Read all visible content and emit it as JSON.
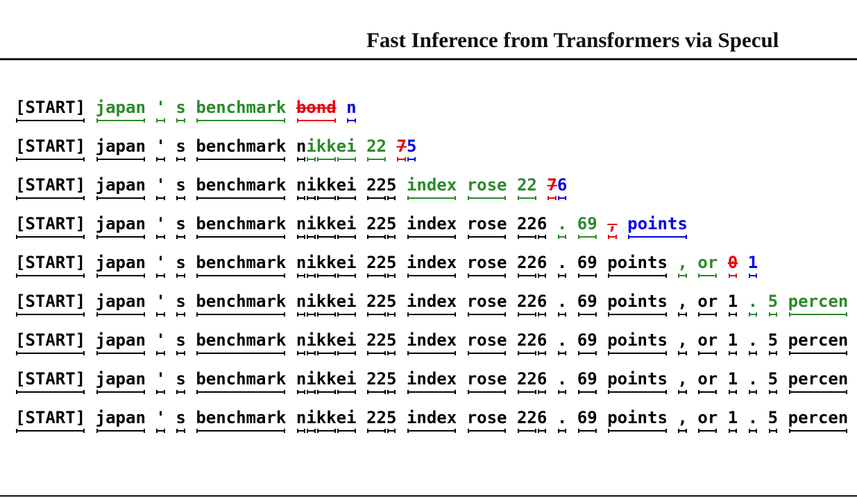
{
  "header": {
    "title": "Fast Inference from Transformers via Specul"
  },
  "rows": [
    [
      [
        {
          "t": "[START]",
          "c": "#000"
        }
      ],
      [
        {
          "t": "japan",
          "c": "#2a8a2a"
        }
      ],
      [
        {
          "t": "'",
          "c": "#2a8a2a"
        }
      ],
      [
        {
          "t": "s",
          "c": "#2a8a2a"
        }
      ],
      [
        {
          "t": "benchmark",
          "c": "#2a8a2a"
        }
      ],
      [
        {
          "t": "bond",
          "c": "#e8000b",
          "s": true
        }
      ],
      [
        {
          "t": "n",
          "c": "#0000e6"
        }
      ]
    ],
    [
      [
        {
          "t": "[START]",
          "c": "#000"
        }
      ],
      [
        {
          "t": "japan",
          "c": "#000"
        }
      ],
      [
        {
          "t": "'",
          "c": "#000"
        }
      ],
      [
        {
          "t": "s",
          "c": "#000"
        }
      ],
      [
        {
          "t": "benchmark",
          "c": "#000"
        }
      ],
      [
        {
          "t": "n",
          "c": "#000"
        },
        {
          "t": "i",
          "c": "#2a8a2a"
        },
        {
          "t": "kk",
          "c": "#2a8a2a"
        },
        {
          "t": "ei",
          "c": "#2a8a2a"
        }
      ],
      [
        {
          "t": "22",
          "c": "#2a8a2a"
        }
      ],
      [
        {
          "t": "7",
          "c": "#e8000b",
          "s": true
        },
        {
          "t": "5",
          "c": "#0000e6"
        }
      ]
    ],
    [
      [
        {
          "t": "[START]",
          "c": "#000"
        }
      ],
      [
        {
          "t": "japan",
          "c": "#000"
        }
      ],
      [
        {
          "t": "'",
          "c": "#000"
        }
      ],
      [
        {
          "t": "s",
          "c": "#000"
        }
      ],
      [
        {
          "t": "benchmark",
          "c": "#000"
        }
      ],
      [
        {
          "t": "n",
          "c": "#000"
        },
        {
          "t": "i",
          "c": "#000"
        },
        {
          "t": "kk",
          "c": "#000"
        },
        {
          "t": "ei",
          "c": "#000"
        }
      ],
      [
        {
          "t": "22",
          "c": "#000"
        },
        {
          "t": "5",
          "c": "#000"
        }
      ],
      [
        {
          "t": "index",
          "c": "#2a8a2a"
        }
      ],
      [
        {
          "t": "rose",
          "c": "#2a8a2a"
        }
      ],
      [
        {
          "t": "22",
          "c": "#2a8a2a"
        }
      ],
      [
        {
          "t": "7",
          "c": "#e8000b",
          "s": true
        },
        {
          "t": "6",
          "c": "#0000e6"
        }
      ]
    ],
    [
      [
        {
          "t": "[START]",
          "c": "#000"
        }
      ],
      [
        {
          "t": "japan",
          "c": "#000"
        }
      ],
      [
        {
          "t": "'",
          "c": "#000"
        }
      ],
      [
        {
          "t": "s",
          "c": "#000"
        }
      ],
      [
        {
          "t": "benchmark",
          "c": "#000"
        }
      ],
      [
        {
          "t": "n",
          "c": "#000"
        },
        {
          "t": "i",
          "c": "#000"
        },
        {
          "t": "kk",
          "c": "#000"
        },
        {
          "t": "ei",
          "c": "#000"
        }
      ],
      [
        {
          "t": "22",
          "c": "#000"
        },
        {
          "t": "5",
          "c": "#000"
        }
      ],
      [
        {
          "t": "index",
          "c": "#000"
        }
      ],
      [
        {
          "t": "rose",
          "c": "#000"
        }
      ],
      [
        {
          "t": "22",
          "c": "#000"
        },
        {
          "t": "6",
          "c": "#000"
        }
      ],
      [
        {
          "t": ".",
          "c": "#2a8a2a"
        }
      ],
      [
        {
          "t": "69",
          "c": "#2a8a2a"
        }
      ],
      [
        {
          "t": ",",
          "c": "#e8000b",
          "s": true
        }
      ],
      [
        {
          "t": "points",
          "c": "#0000e6"
        }
      ]
    ],
    [
      [
        {
          "t": "[START]",
          "c": "#000"
        }
      ],
      [
        {
          "t": "japan",
          "c": "#000"
        }
      ],
      [
        {
          "t": "'",
          "c": "#000"
        }
      ],
      [
        {
          "t": "s",
          "c": "#000"
        }
      ],
      [
        {
          "t": "benchmark",
          "c": "#000"
        }
      ],
      [
        {
          "t": "n",
          "c": "#000"
        },
        {
          "t": "i",
          "c": "#000"
        },
        {
          "t": "kk",
          "c": "#000"
        },
        {
          "t": "ei",
          "c": "#000"
        }
      ],
      [
        {
          "t": "22",
          "c": "#000"
        },
        {
          "t": "5",
          "c": "#000"
        }
      ],
      [
        {
          "t": "index",
          "c": "#000"
        }
      ],
      [
        {
          "t": "rose",
          "c": "#000"
        }
      ],
      [
        {
          "t": "22",
          "c": "#000"
        },
        {
          "t": "6",
          "c": "#000"
        }
      ],
      [
        {
          "t": ".",
          "c": "#000"
        }
      ],
      [
        {
          "t": "69",
          "c": "#000"
        }
      ],
      [
        {
          "t": "points",
          "c": "#000"
        }
      ],
      [
        {
          "t": ",",
          "c": "#2a8a2a"
        }
      ],
      [
        {
          "t": "or",
          "c": "#2a8a2a"
        }
      ],
      [
        {
          "t": "0",
          "c": "#e8000b",
          "s": true
        }
      ],
      [
        {
          "t": "1",
          "c": "#0000e6"
        }
      ]
    ],
    [
      [
        {
          "t": "[START]",
          "c": "#000"
        }
      ],
      [
        {
          "t": "japan",
          "c": "#000"
        }
      ],
      [
        {
          "t": "'",
          "c": "#000"
        }
      ],
      [
        {
          "t": "s",
          "c": "#000"
        }
      ],
      [
        {
          "t": "benchmark",
          "c": "#000"
        }
      ],
      [
        {
          "t": "n",
          "c": "#000"
        },
        {
          "t": "i",
          "c": "#000"
        },
        {
          "t": "kk",
          "c": "#000"
        },
        {
          "t": "ei",
          "c": "#000"
        }
      ],
      [
        {
          "t": "22",
          "c": "#000"
        },
        {
          "t": "5",
          "c": "#000"
        }
      ],
      [
        {
          "t": "index",
          "c": "#000"
        }
      ],
      [
        {
          "t": "rose",
          "c": "#000"
        }
      ],
      [
        {
          "t": "22",
          "c": "#000"
        },
        {
          "t": "6",
          "c": "#000"
        }
      ],
      [
        {
          "t": ".",
          "c": "#000"
        }
      ],
      [
        {
          "t": "69",
          "c": "#000"
        }
      ],
      [
        {
          "t": "points",
          "c": "#000"
        }
      ],
      [
        {
          "t": ",",
          "c": "#000"
        }
      ],
      [
        {
          "t": "or",
          "c": "#000"
        }
      ],
      [
        {
          "t": "1",
          "c": "#000"
        }
      ],
      [
        {
          "t": ".",
          "c": "#2a8a2a"
        }
      ],
      [
        {
          "t": "5",
          "c": "#2a8a2a"
        }
      ],
      [
        {
          "t": "percen",
          "c": "#2a8a2a"
        }
      ]
    ],
    [
      [
        {
          "t": "[START]",
          "c": "#000"
        }
      ],
      [
        {
          "t": "japan",
          "c": "#000"
        }
      ],
      [
        {
          "t": "'",
          "c": "#000"
        }
      ],
      [
        {
          "t": "s",
          "c": "#000"
        }
      ],
      [
        {
          "t": "benchmark",
          "c": "#000"
        }
      ],
      [
        {
          "t": "n",
          "c": "#000"
        },
        {
          "t": "i",
          "c": "#000"
        },
        {
          "t": "kk",
          "c": "#000"
        },
        {
          "t": "ei",
          "c": "#000"
        }
      ],
      [
        {
          "t": "22",
          "c": "#000"
        },
        {
          "t": "5",
          "c": "#000"
        }
      ],
      [
        {
          "t": "index",
          "c": "#000"
        }
      ],
      [
        {
          "t": "rose",
          "c": "#000"
        }
      ],
      [
        {
          "t": "22",
          "c": "#000"
        },
        {
          "t": "6",
          "c": "#000"
        }
      ],
      [
        {
          "t": ".",
          "c": "#000"
        }
      ],
      [
        {
          "t": "69",
          "c": "#000"
        }
      ],
      [
        {
          "t": "points",
          "c": "#000"
        }
      ],
      [
        {
          "t": ",",
          "c": "#000"
        }
      ],
      [
        {
          "t": "or",
          "c": "#000"
        }
      ],
      [
        {
          "t": "1",
          "c": "#000"
        }
      ],
      [
        {
          "t": ".",
          "c": "#000"
        }
      ],
      [
        {
          "t": "5",
          "c": "#000"
        }
      ],
      [
        {
          "t": "percen",
          "c": "#000"
        }
      ]
    ],
    [
      [
        {
          "t": "[START]",
          "c": "#000"
        }
      ],
      [
        {
          "t": "japan",
          "c": "#000"
        }
      ],
      [
        {
          "t": "'",
          "c": "#000"
        }
      ],
      [
        {
          "t": "s",
          "c": "#000"
        }
      ],
      [
        {
          "t": "benchmark",
          "c": "#000"
        }
      ],
      [
        {
          "t": "n",
          "c": "#000"
        },
        {
          "t": "i",
          "c": "#000"
        },
        {
          "t": "kk",
          "c": "#000"
        },
        {
          "t": "ei",
          "c": "#000"
        }
      ],
      [
        {
          "t": "22",
          "c": "#000"
        },
        {
          "t": "5",
          "c": "#000"
        }
      ],
      [
        {
          "t": "index",
          "c": "#000"
        }
      ],
      [
        {
          "t": "rose",
          "c": "#000"
        }
      ],
      [
        {
          "t": "22",
          "c": "#000"
        },
        {
          "t": "6",
          "c": "#000"
        }
      ],
      [
        {
          "t": ".",
          "c": "#000"
        }
      ],
      [
        {
          "t": "69",
          "c": "#000"
        }
      ],
      [
        {
          "t": "points",
          "c": "#000"
        }
      ],
      [
        {
          "t": ",",
          "c": "#000"
        }
      ],
      [
        {
          "t": "or",
          "c": "#000"
        }
      ],
      [
        {
          "t": "1",
          "c": "#000"
        }
      ],
      [
        {
          "t": ".",
          "c": "#000"
        }
      ],
      [
        {
          "t": "5",
          "c": "#000"
        }
      ],
      [
        {
          "t": "percen",
          "c": "#000"
        }
      ]
    ],
    [
      [
        {
          "t": "[START]",
          "c": "#000"
        }
      ],
      [
        {
          "t": "japan",
          "c": "#000"
        }
      ],
      [
        {
          "t": "'",
          "c": "#000"
        }
      ],
      [
        {
          "t": "s",
          "c": "#000"
        }
      ],
      [
        {
          "t": "benchmark",
          "c": "#000"
        }
      ],
      [
        {
          "t": "n",
          "c": "#000"
        },
        {
          "t": "i",
          "c": "#000"
        },
        {
          "t": "kk",
          "c": "#000"
        },
        {
          "t": "ei",
          "c": "#000"
        }
      ],
      [
        {
          "t": "22",
          "c": "#000"
        },
        {
          "t": "5",
          "c": "#000"
        }
      ],
      [
        {
          "t": "index",
          "c": "#000"
        }
      ],
      [
        {
          "t": "rose",
          "c": "#000"
        }
      ],
      [
        {
          "t": "22",
          "c": "#000"
        },
        {
          "t": "6",
          "c": "#000"
        }
      ],
      [
        {
          "t": ".",
          "c": "#000"
        }
      ],
      [
        {
          "t": "69",
          "c": "#000"
        }
      ],
      [
        {
          "t": "points",
          "c": "#000"
        }
      ],
      [
        {
          "t": ",",
          "c": "#000"
        }
      ],
      [
        {
          "t": "or",
          "c": "#000"
        }
      ],
      [
        {
          "t": "1",
          "c": "#000"
        }
      ],
      [
        {
          "t": ".",
          "c": "#000"
        }
      ],
      [
        {
          "t": "5",
          "c": "#000"
        }
      ],
      [
        {
          "t": "percen",
          "c": "#000"
        }
      ]
    ]
  ]
}
